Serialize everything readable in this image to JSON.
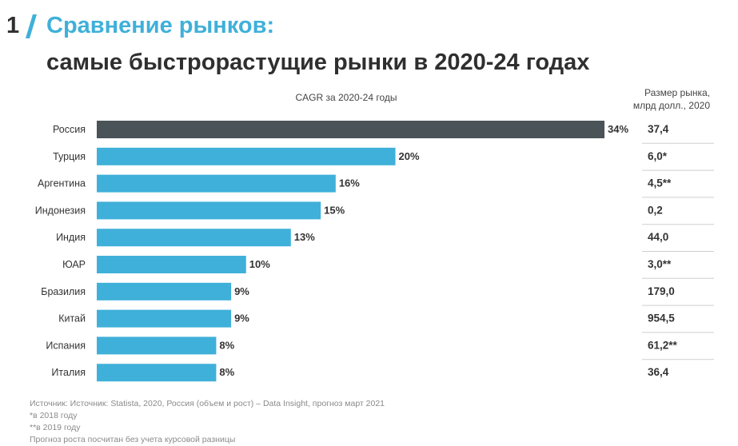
{
  "header": {
    "slide_number": "1",
    "title": "Сравнение рынков:",
    "subtitle": "самые быстрорастущие рынки в 2020-24 годах"
  },
  "colors": {
    "accent": "#3fb0d9",
    "highlight": "#4a5358",
    "bar": "#3fb0d9",
    "text": "#2f2f2f",
    "divider": "#cfcfcf"
  },
  "chart_data": {
    "type": "bar",
    "orientation": "horizontal",
    "title": "CAGR за 2020-24 годы",
    "side_column_header_line1": "Размер рынка,",
    "side_column_header_line2": "млрд долл., 2020",
    "categories": [
      "Россия",
      "Турция",
      "Аргентина",
      "Индонезия",
      "Индия",
      "ЮАР",
      "Бразилия",
      "Китай",
      "Испания",
      "Италия"
    ],
    "values": [
      34,
      20,
      16,
      15,
      13,
      10,
      9,
      9,
      8,
      8
    ],
    "value_labels": [
      "34%",
      "20%",
      "16%",
      "15%",
      "13%",
      "10%",
      "9%",
      "9%",
      "8%",
      "8%"
    ],
    "market_size_labels": [
      "37,4",
      "6,0*",
      "4,5**",
      "0,2",
      "44,0",
      "3,0**",
      "179,0",
      "954,5",
      "61,2**",
      "36,4"
    ],
    "highlighted_category": "Россия",
    "xlim": [
      0,
      34
    ],
    "grid": false
  },
  "footnotes": {
    "source": "Источник: Источник: Statista, 2020, Россия (объем и рост) – Data Insight, прогноз март 2021",
    "note1": "*в 2018 году",
    "note2": "**в 2019 году",
    "note3": "Прогноз роста посчитан без учета курсовой разницы"
  }
}
